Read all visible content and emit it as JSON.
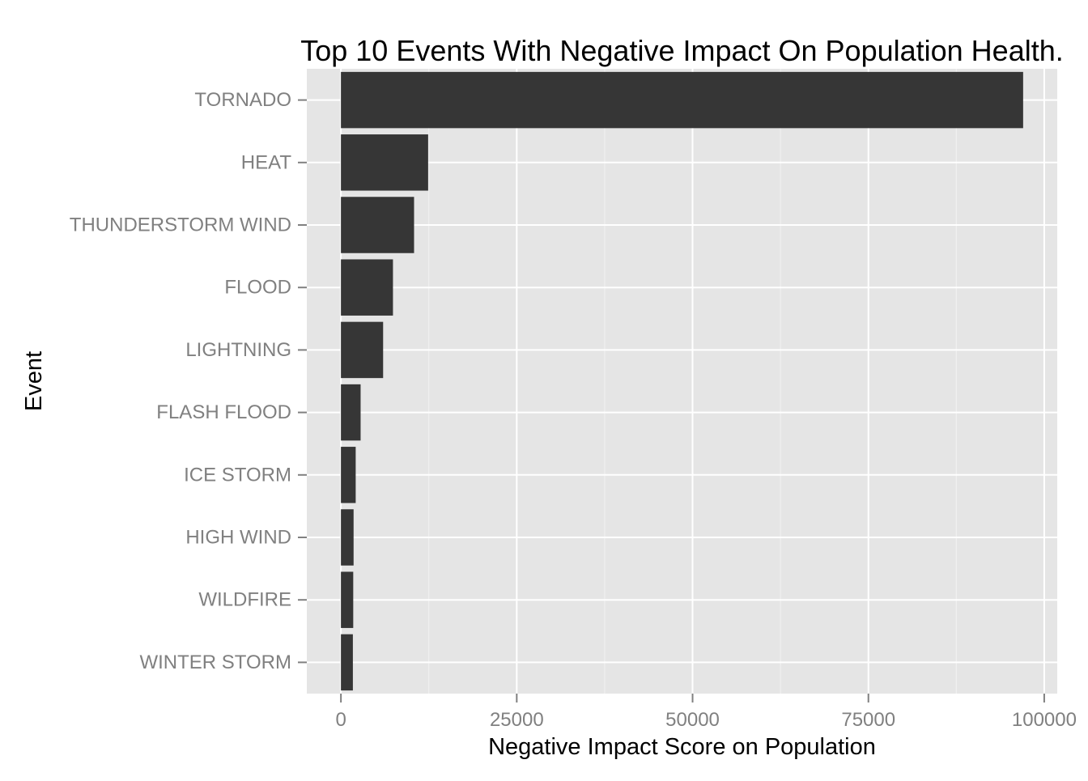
{
  "chart_data": {
    "type": "bar",
    "orientation": "horizontal",
    "title": "Top 10 Events With Negative Impact On Population Health.",
    "xlabel": "Negative Impact Score on Population",
    "ylabel": "Event",
    "categories": [
      "TORNADO",
      "HEAT",
      "THUNDERSTORM WIND",
      "FLOOD",
      "LIGHTNING",
      "FLASH FLOOD",
      "ICE STORM",
      "HIGH WIND",
      "WILDFIRE",
      "WINTER STORM"
    ],
    "values": [
      97000,
      12400,
      10400,
      7400,
      6000,
      2800,
      2100,
      1800,
      1750,
      1700
    ],
    "xlim": [
      -4850,
      101850
    ],
    "xticks": [
      0,
      25000,
      50000,
      75000,
      100000
    ],
    "xtick_labels": [
      "0",
      "25000",
      "50000",
      "75000",
      "100000"
    ],
    "grid": true,
    "colors": {
      "bar": "#363636",
      "panel": "#e5e5e5",
      "grid_major": "#ffffff",
      "grid_minor": "#f2f2f2",
      "tick_text": "#808080",
      "title_text": "#000000"
    }
  }
}
